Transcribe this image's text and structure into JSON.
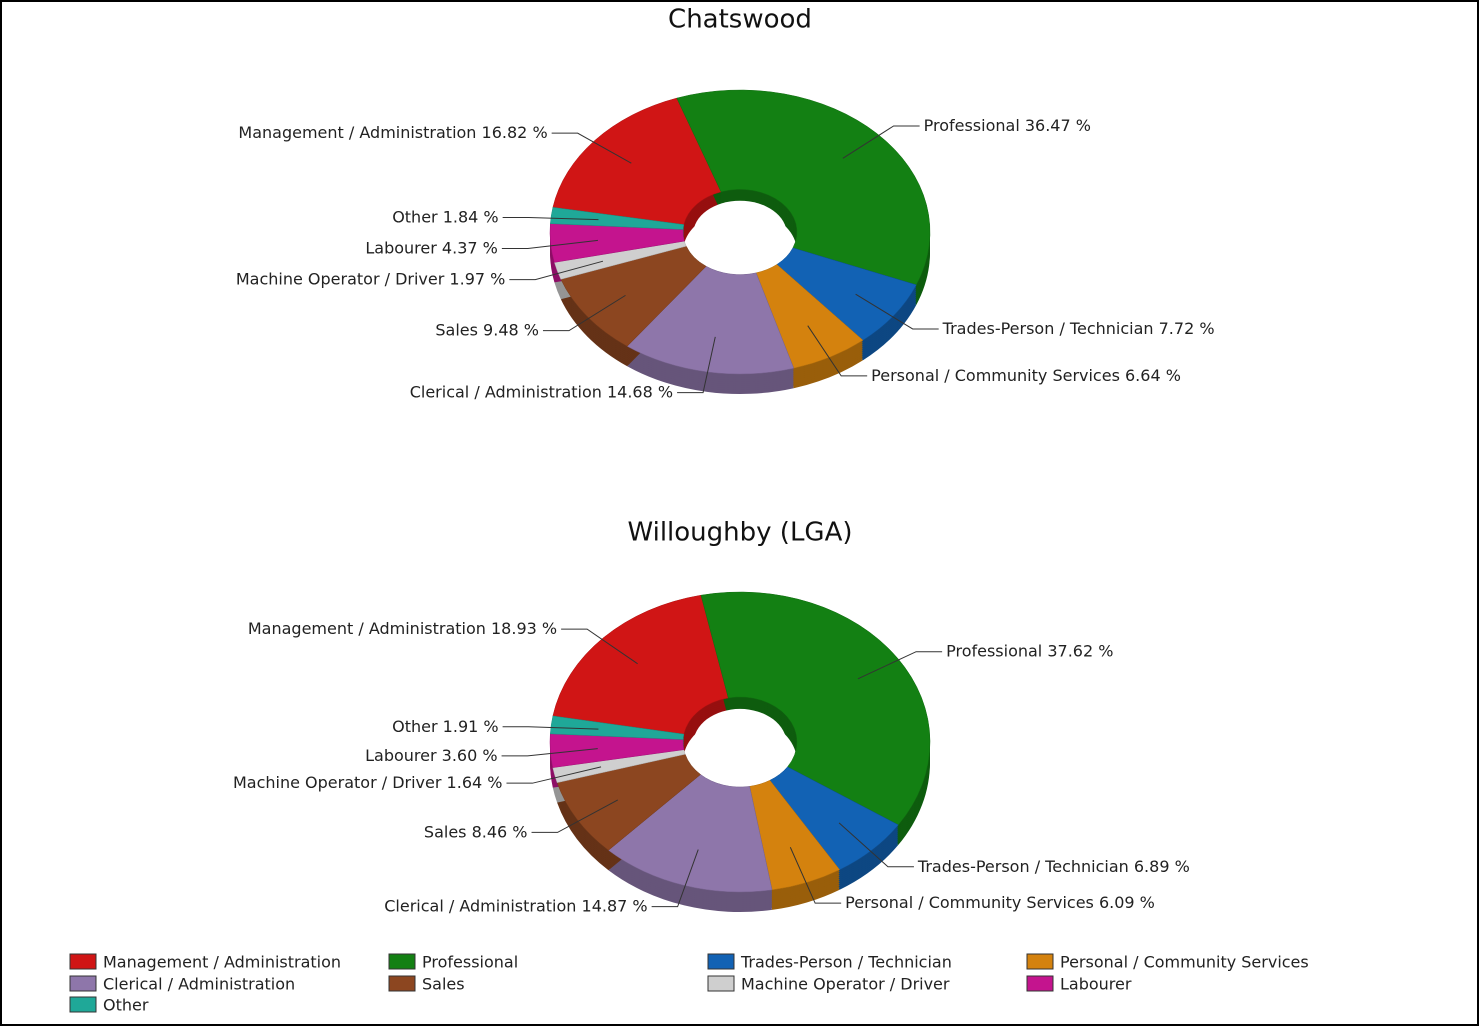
{
  "chart_data": [
    {
      "type": "donut",
      "title": "Chatswood",
      "categories": [
        "Management / Administration",
        "Professional",
        "Trades-Person / Technician",
        "Personal / Community Services",
        "Clerical / Administration",
        "Sales",
        "Machine Operator / Driver",
        "Labourer",
        "Other"
      ],
      "values": [
        16.82,
        36.47,
        7.72,
        6.64,
        14.68,
        9.48,
        1.97,
        4.37,
        1.84
      ],
      "value_labels": [
        "16.82 %",
        "36.47 %",
        "7.72 %",
        "6.64 %",
        "14.68 %",
        "9.48 %",
        "1.97 %",
        "4.37 %",
        "1.84 %"
      ],
      "colors": [
        "#d01515",
        "#138013",
        "#1262b4",
        "#d4820e",
        "#8e76aa",
        "#8c4620",
        "#cfcfcf",
        "#c4148e",
        "#1fa898"
      ],
      "legend": "bottom"
    },
    {
      "type": "donut",
      "title": "Willoughby (LGA)",
      "categories": [
        "Management / Administration",
        "Professional",
        "Trades-Person / Technician",
        "Personal / Community Services",
        "Clerical / Administration",
        "Sales",
        "Machine Operator / Driver",
        "Labourer",
        "Other"
      ],
      "values": [
        18.93,
        37.62,
        6.89,
        6.09,
        14.87,
        8.46,
        1.64,
        3.6,
        1.91
      ],
      "value_labels": [
        "18.93 %",
        "37.62 %",
        "6.89 %",
        "6.09 %",
        "14.87 %",
        "8.46 %",
        "1.64 %",
        "3.60 %",
        "1.91 %"
      ],
      "colors": [
        "#d01515",
        "#138013",
        "#1262b4",
        "#d4820e",
        "#8e76aa",
        "#8c4620",
        "#cfcfcf",
        "#c4148e",
        "#1fa898"
      ]
    }
  ]
}
